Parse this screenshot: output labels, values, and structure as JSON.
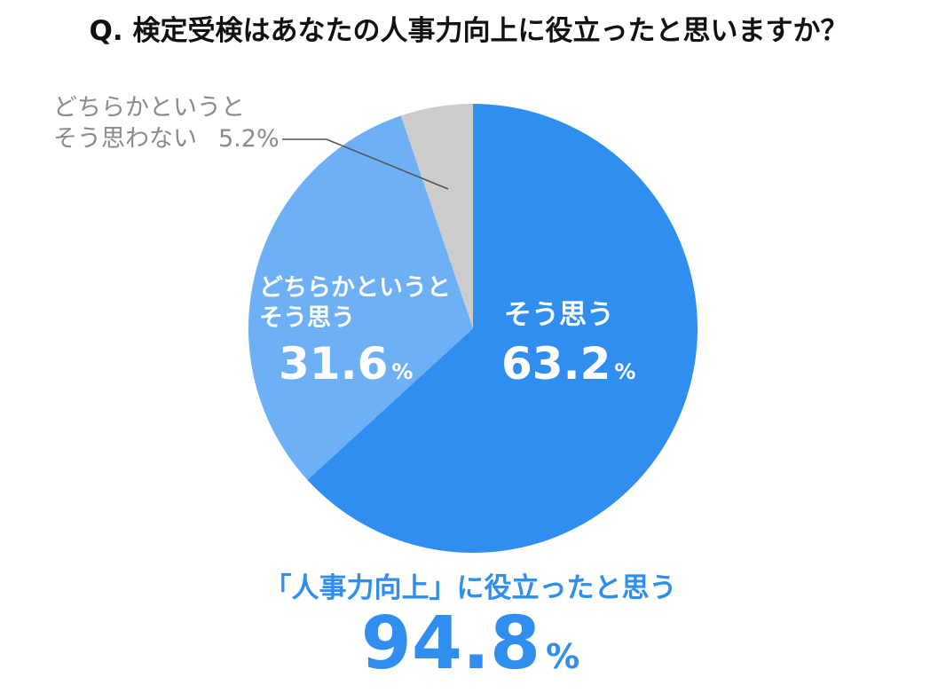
{
  "title": "Q. 検定受検はあなたの人事力向上に役立ったと思いますか？",
  "chart_data": {
    "type": "pie",
    "start": "top",
    "direction": "clockwise",
    "slices": [
      {
        "label_lines": [
          "そう思う"
        ],
        "value": 63.2,
        "value_text": "63.2",
        "unit": "%",
        "color": "#2f8ef0"
      },
      {
        "label_lines": [
          "どちらかというと",
          "そう思う"
        ],
        "value": 31.6,
        "value_text": "31.6",
        "unit": "%",
        "color": "#6db0f6"
      },
      {
        "label_lines": [
          "どちらかというと",
          "そう思わない"
        ],
        "value": 5.2,
        "value_text": "5.2%",
        "color": "#cccccc"
      }
    ]
  },
  "summary": {
    "label": "「人事力向上」に役立ったと思う",
    "value": "94.8",
    "unit": "%"
  }
}
